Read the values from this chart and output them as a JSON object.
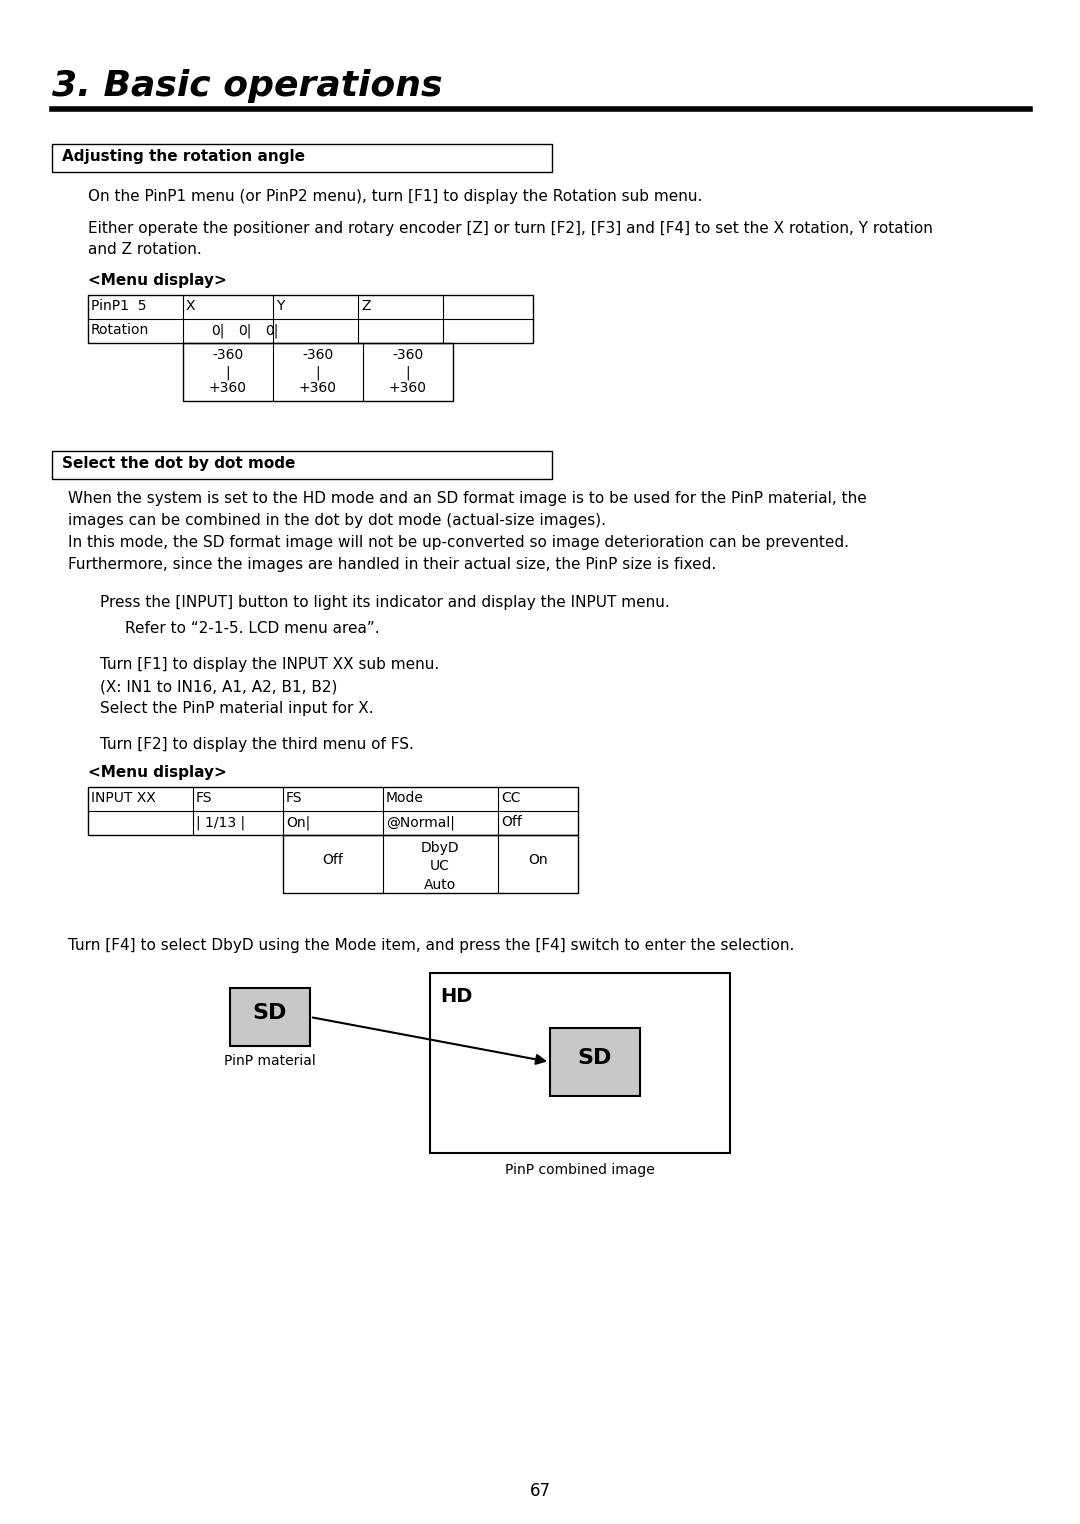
{
  "title": "3. Basic operations",
  "bg_color": "#ffffff",
  "section1_header": "Adjusting the rotation angle",
  "section1_text1": "On the PinP1 menu (or PinP2 menu), turn [F1] to display the Rotation sub menu.",
  "section1_text2": "Either operate the positioner and rotary encoder [Z] or turn [F2], [F3] and [F4] to set the X rotation, Y rotation\nand Z rotation.",
  "menu_display1": "<Menu display>",
  "section2_header": "Select the dot by dot mode",
  "section2_text_line1": "When the system is set to the HD mode and an SD format image is to be used for the PinP material, the",
  "section2_text_line2": "images can be combined in the dot by dot mode (actual-size images).",
  "section2_text_line3": "In this mode, the SD format image will not be up-converted so image deterioration can be prevented.",
  "section2_text_line4": "Furthermore, since the images are handled in their actual size, the PinP size is fixed.",
  "section2_indent1": "Press the [INPUT] button to light its indicator and display the INPUT menu.",
  "section2_indent2": "Refer to “2-1-5. LCD menu area”.",
  "section2_indent3a": "Turn [F1] to display the INPUT XX sub menu.",
  "section2_indent3b": "(X: IN1 to IN16, A1, A2, B1, B2)",
  "section2_indent3c": "Select the PinP material input for X.",
  "section2_indent4": "Turn [F2] to display the third menu of FS.",
  "menu_display2": "<Menu display>",
  "section2_last": "Turn [F4] to select DbyD using the Mode item, and press the [F4] switch to enter the selection.",
  "page_number": "67"
}
